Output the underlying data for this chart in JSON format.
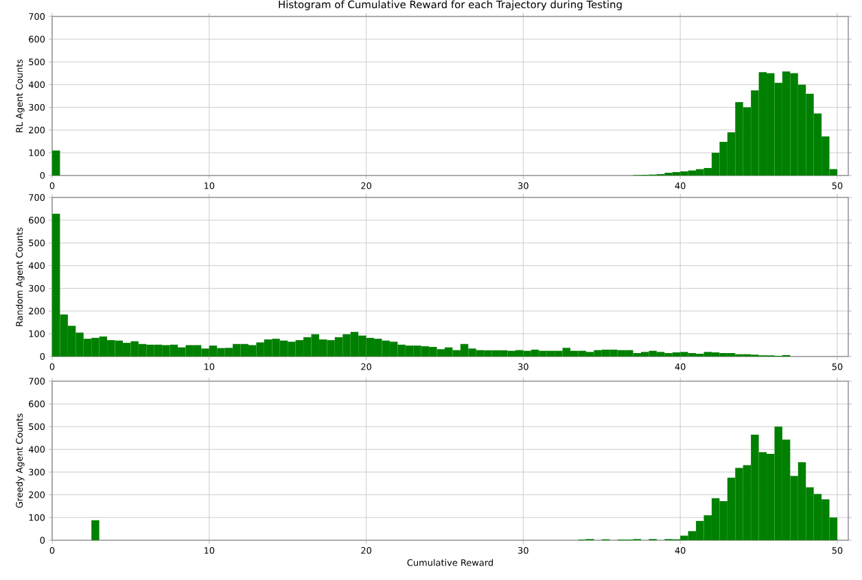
{
  "chart_data": [
    {
      "type": "histogram",
      "title": "Histogram of Cumulative Reward for each Trajectory during Testing",
      "ylabel": "RL Agent Counts",
      "color": "#008000",
      "grid": true,
      "xlim": [
        0,
        50.7
      ],
      "ylim": [
        0,
        700
      ],
      "xticks": [
        0,
        10,
        20,
        30,
        40,
        50
      ],
      "yticks": [
        0,
        100,
        200,
        300,
        400,
        500,
        600,
        700
      ],
      "bins": [
        0,
        0.5,
        1,
        1.5,
        2,
        2.5,
        3,
        3.5,
        4,
        4.5,
        5,
        5.5,
        6,
        6.5,
        7,
        7.5,
        8,
        8.5,
        9,
        9.5,
        10,
        10.5,
        11,
        11.5,
        12,
        12.5,
        13,
        13.5,
        14,
        14.5,
        15,
        15.5,
        16,
        16.5,
        17,
        17.5,
        18,
        18.5,
        19,
        19.5,
        20,
        20.5,
        21,
        21.5,
        22,
        22.5,
        23,
        23.5,
        24,
        24.5,
        25,
        25.5,
        26,
        26.5,
        27,
        27.5,
        28,
        28.5,
        29,
        29.5,
        30,
        30.5,
        31,
        31.5,
        32,
        32.5,
        33,
        33.5,
        34,
        34.5,
        35,
        35.5,
        36,
        36.5,
        37,
        37.5,
        38,
        38.5,
        39,
        39.5,
        40,
        40.5,
        41,
        41.5,
        42,
        42.5,
        43,
        43.5,
        44,
        44.5,
        45,
        45.5,
        46,
        46.5,
        47,
        47.5,
        48,
        48.5,
        49,
        49.5,
        50
      ],
      "values": [
        110,
        0,
        0,
        0,
        0,
        0,
        0,
        0,
        0,
        0,
        0,
        0,
        0,
        0,
        0,
        0,
        0,
        0,
        0,
        0,
        0,
        0,
        0,
        0,
        0,
        0,
        0,
        0,
        0,
        0,
        0,
        0,
        0,
        0,
        0,
        0,
        0,
        0,
        0,
        0,
        0,
        0,
        0,
        0,
        0,
        0,
        0,
        0,
        0,
        0,
        0,
        0,
        0,
        0,
        0,
        0,
        0,
        0,
        0,
        0,
        0,
        0,
        0,
        0,
        0,
        0,
        0,
        0,
        0,
        0,
        0,
        0,
        0,
        0,
        2,
        3,
        4,
        6,
        12,
        15,
        18,
        22,
        28,
        33,
        100,
        148,
        190,
        323,
        300,
        375,
        455,
        450,
        408,
        458,
        450,
        400,
        360,
        273,
        172,
        28
      ]
    },
    {
      "type": "histogram",
      "ylabel": "Random Agent Counts",
      "color": "#008000",
      "grid": true,
      "xlim": [
        0,
        50.7
      ],
      "ylim": [
        0,
        700
      ],
      "xticks": [
        0,
        10,
        20,
        30,
        40,
        50
      ],
      "yticks": [
        0,
        100,
        200,
        300,
        400,
        500,
        600,
        700
      ],
      "bins": [
        0,
        0.5,
        1,
        1.5,
        2,
        2.5,
        3,
        3.5,
        4,
        4.5,
        5,
        5.5,
        6,
        6.5,
        7,
        7.5,
        8,
        8.5,
        9,
        9.5,
        10,
        10.5,
        11,
        11.5,
        12,
        12.5,
        13,
        13.5,
        14,
        14.5,
        15,
        15.5,
        16,
        16.5,
        17,
        17.5,
        18,
        18.5,
        19,
        19.5,
        20,
        20.5,
        21,
        21.5,
        22,
        22.5,
        23,
        23.5,
        24,
        24.5,
        25,
        25.5,
        26,
        26.5,
        27,
        27.5,
        28,
        28.5,
        29,
        29.5,
        30,
        30.5,
        31,
        31.5,
        32,
        32.5,
        33,
        33.5,
        34,
        34.5,
        35,
        35.5,
        36,
        36.5,
        37,
        37.5,
        38,
        38.5,
        39,
        39.5,
        40,
        40.5,
        41,
        41.5,
        42,
        42.5,
        43,
        43.5,
        44,
        44.5,
        45,
        45.5,
        46,
        46.5,
        47,
        47.5,
        48,
        48.5,
        49,
        49.5,
        50
      ],
      "values": [
        628,
        185,
        135,
        105,
        78,
        82,
        88,
        72,
        70,
        60,
        67,
        55,
        52,
        52,
        50,
        52,
        40,
        50,
        50,
        35,
        48,
        37,
        38,
        55,
        55,
        50,
        62,
        75,
        78,
        70,
        65,
        72,
        85,
        98,
        75,
        72,
        85,
        98,
        108,
        92,
        82,
        78,
        70,
        65,
        52,
        48,
        48,
        45,
        42,
        32,
        40,
        28,
        55,
        35,
        28,
        27,
        27,
        27,
        25,
        28,
        25,
        30,
        25,
        25,
        25,
        38,
        25,
        25,
        20,
        28,
        30,
        30,
        28,
        28,
        15,
        20,
        25,
        20,
        15,
        18,
        20,
        15,
        12,
        20,
        18,
        15,
        15,
        10,
        10,
        8,
        5,
        5,
        3,
        6,
        0,
        0,
        0,
        0,
        0,
        0
      ]
    },
    {
      "type": "histogram",
      "ylabel": "Greedy Agent Counts",
      "xlabel": "Cumulative Reward",
      "color": "#008000",
      "grid": true,
      "xlim": [
        0,
        50.7
      ],
      "ylim": [
        0,
        700
      ],
      "xticks": [
        0,
        10,
        20,
        30,
        40,
        50
      ],
      "yticks": [
        0,
        100,
        200,
        300,
        400,
        500,
        600,
        700
      ],
      "bins": [
        0,
        0.5,
        1,
        1.5,
        2,
        2.5,
        3,
        3.5,
        4,
        4.5,
        5,
        5.5,
        6,
        6.5,
        7,
        7.5,
        8,
        8.5,
        9,
        9.5,
        10,
        10.5,
        11,
        11.5,
        12,
        12.5,
        13,
        13.5,
        14,
        14.5,
        15,
        15.5,
        16,
        16.5,
        17,
        17.5,
        18,
        18.5,
        19,
        19.5,
        20,
        20.5,
        21,
        21.5,
        22,
        22.5,
        23,
        23.5,
        24,
        24.5,
        25,
        25.5,
        26,
        26.5,
        27,
        27.5,
        28,
        28.5,
        29,
        29.5,
        30,
        30.5,
        31,
        31.5,
        32,
        32.5,
        33,
        33.5,
        34,
        34.5,
        35,
        35.5,
        36,
        36.5,
        37,
        37.5,
        38,
        38.5,
        39,
        39.5,
        40,
        40.5,
        41,
        41.5,
        42,
        42.5,
        43,
        43.5,
        44,
        44.5,
        45,
        45.5,
        46,
        46.5,
        47,
        47.5,
        48,
        48.5,
        49,
        49.5,
        50
      ],
      "values": [
        0,
        0,
        0,
        0,
        0,
        88,
        0,
        0,
        0,
        0,
        0,
        0,
        0,
        0,
        0,
        0,
        0,
        0,
        0,
        0,
        0,
        0,
        0,
        0,
        0,
        0,
        0,
        0,
        0,
        0,
        0,
        0,
        0,
        0,
        0,
        0,
        0,
        0,
        0,
        0,
        0,
        0,
        0,
        0,
        0,
        0,
        0,
        0,
        0,
        0,
        0,
        0,
        0,
        0,
        0,
        0,
        0,
        0,
        0,
        0,
        0,
        0,
        0,
        0,
        0,
        0,
        0,
        3,
        5,
        0,
        4,
        0,
        3,
        3,
        5,
        0,
        5,
        0,
        5,
        4,
        20,
        40,
        85,
        110,
        185,
        172,
        275,
        318,
        330,
        465,
        388,
        380,
        500,
        443,
        283,
        343,
        233,
        204,
        180,
        100
      ]
    }
  ]
}
